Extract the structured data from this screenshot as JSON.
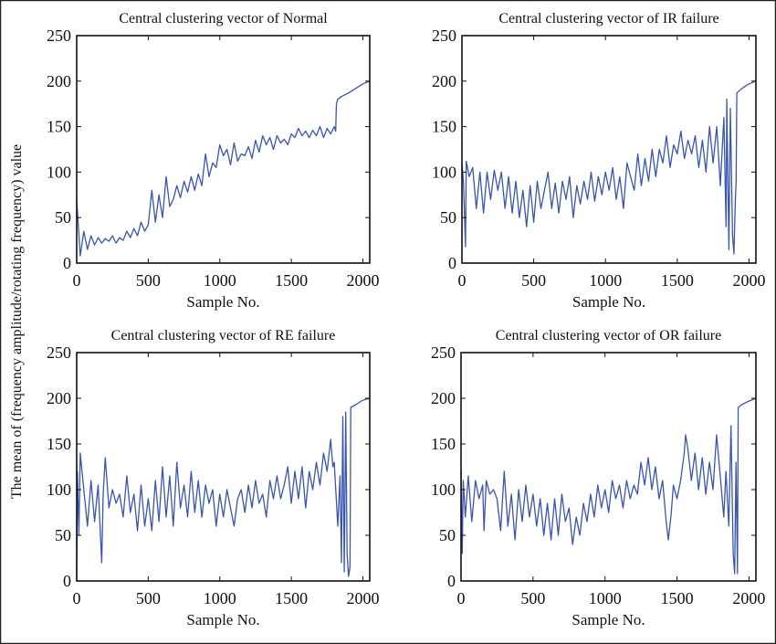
{
  "figure": {
    "ylabel": "The mean of (frequency amplitude/rotating frequency) value",
    "line_color": "#3a55b0"
  },
  "chart_data": [
    {
      "type": "line",
      "title": "Central clustering vector of Normal",
      "xlabel": "Sample No.",
      "xlim": [
        0,
        2048
      ],
      "ylim": [
        0,
        250
      ],
      "xticks": [
        "0",
        "500",
        "1000",
        "1500",
        "2000"
      ],
      "yticks": [
        "0",
        "50",
        "100",
        "150",
        "200",
        "250"
      ],
      "grid": false,
      "x": [
        0,
        25,
        50,
        75,
        100,
        125,
        150,
        175,
        200,
        225,
        250,
        275,
        300,
        325,
        350,
        375,
        400,
        425,
        450,
        475,
        500,
        525,
        550,
        575,
        600,
        625,
        650,
        675,
        700,
        725,
        750,
        775,
        800,
        825,
        850,
        875,
        900,
        925,
        950,
        975,
        1000,
        1025,
        1050,
        1075,
        1100,
        1125,
        1150,
        1175,
        1200,
        1225,
        1250,
        1275,
        1300,
        1325,
        1350,
        1375,
        1400,
        1425,
        1450,
        1475,
        1500,
        1525,
        1550,
        1575,
        1600,
        1625,
        1650,
        1675,
        1700,
        1725,
        1750,
        1775,
        1800,
        1810,
        1815,
        1825,
        1850,
        1900,
        1950,
        2000,
        2048
      ],
      "y": [
        70,
        8,
        35,
        15,
        30,
        20,
        28,
        22,
        27,
        24,
        30,
        22,
        28,
        25,
        35,
        28,
        38,
        30,
        45,
        35,
        42,
        80,
        45,
        75,
        50,
        95,
        62,
        70,
        85,
        72,
        90,
        78,
        95,
        80,
        98,
        85,
        120,
        95,
        110,
        105,
        130,
        118,
        125,
        108,
        132,
        112,
        120,
        118,
        128,
        115,
        135,
        122,
        140,
        130,
        138,
        125,
        140,
        132,
        136,
        130,
        142,
        138,
        148,
        140,
        145,
        138,
        146,
        140,
        150,
        138,
        148,
        142,
        150,
        145,
        175,
        180,
        183,
        187,
        192,
        197,
        200
      ]
    },
    {
      "type": "line",
      "title": "Central clustering vector of IR failure",
      "xlabel": "Sample No.",
      "xlim": [
        0,
        2048
      ],
      "ylim": [
        0,
        250
      ],
      "xticks": [
        "0",
        "500",
        "1000",
        "1500",
        "2000"
      ],
      "yticks": [
        "0",
        "50",
        "100",
        "150",
        "200",
        "250"
      ],
      "grid": false,
      "x": [
        0,
        10,
        25,
        30,
        50,
        75,
        100,
        125,
        150,
        175,
        200,
        225,
        250,
        275,
        300,
        325,
        350,
        375,
        400,
        425,
        450,
        475,
        500,
        525,
        550,
        575,
        600,
        625,
        650,
        675,
        700,
        725,
        750,
        775,
        800,
        825,
        850,
        875,
        900,
        925,
        950,
        975,
        1000,
        1025,
        1050,
        1075,
        1100,
        1125,
        1150,
        1175,
        1200,
        1225,
        1250,
        1275,
        1300,
        1325,
        1350,
        1375,
        1400,
        1425,
        1450,
        1475,
        1500,
        1525,
        1550,
        1575,
        1600,
        1625,
        1650,
        1675,
        1700,
        1725,
        1750,
        1775,
        1800,
        1825,
        1840,
        1845,
        1860,
        1870,
        1885,
        1895,
        1905,
        1910,
        1915,
        1950,
        2000,
        2048
      ],
      "y": [
        110,
        90,
        18,
        112,
        95,
        105,
        60,
        100,
        55,
        100,
        70,
        102,
        80,
        100,
        60,
        95,
        55,
        90,
        50,
        80,
        40,
        85,
        45,
        90,
        60,
        80,
        100,
        60,
        88,
        55,
        90,
        70,
        95,
        50,
        85,
        65,
        90,
        70,
        100,
        68,
        95,
        75,
        100,
        80,
        105,
        70,
        95,
        60,
        110,
        95,
        80,
        120,
        85,
        115,
        90,
        125,
        95,
        125,
        110,
        140,
        105,
        130,
        120,
        145,
        115,
        135,
        120,
        140,
        105,
        135,
        100,
        150,
        110,
        150,
        85,
        160,
        40,
        180,
        15,
        170,
        30,
        10,
        70,
        90,
        187,
        192,
        197,
        200
      ]
    },
    {
      "type": "line",
      "title": "Central clustering vector of RE failure",
      "xlabel": "Sample No.",
      "xlim": [
        0,
        2048
      ],
      "ylim": [
        0,
        250
      ],
      "xticks": [
        "0",
        "500",
        "1000",
        "1500",
        "2000"
      ],
      "yticks": [
        "0",
        "50",
        "100",
        "150",
        "200",
        "250"
      ],
      "grid": false,
      "x": [
        0,
        5,
        15,
        25,
        50,
        75,
        100,
        125,
        150,
        175,
        185,
        200,
        225,
        250,
        275,
        300,
        325,
        350,
        375,
        400,
        425,
        450,
        475,
        500,
        525,
        550,
        575,
        600,
        625,
        650,
        675,
        700,
        725,
        750,
        775,
        800,
        825,
        850,
        875,
        900,
        925,
        950,
        975,
        1000,
        1025,
        1050,
        1075,
        1100,
        1125,
        1150,
        1175,
        1200,
        1225,
        1250,
        1275,
        1300,
        1325,
        1350,
        1375,
        1400,
        1425,
        1450,
        1475,
        1500,
        1525,
        1550,
        1575,
        1600,
        1625,
        1650,
        1675,
        1700,
        1725,
        1750,
        1775,
        1790,
        1800,
        1825,
        1840,
        1850,
        1860,
        1870,
        1880,
        1890,
        1900,
        1910,
        1915,
        1950,
        2000,
        2048
      ],
      "y": [
        0,
        120,
        50,
        140,
        100,
        60,
        110,
        65,
        105,
        20,
        95,
        135,
        80,
        100,
        85,
        95,
        70,
        115,
        75,
        95,
        55,
        105,
        60,
        90,
        55,
        110,
        65,
        125,
        70,
        115,
        60,
        130,
        80,
        105,
        70,
        120,
        75,
        110,
        70,
        105,
        85,
        100,
        60,
        95,
        70,
        100,
        80,
        60,
        90,
        100,
        75,
        105,
        80,
        110,
        85,
        95,
        70,
        110,
        90,
        115,
        90,
        105,
        125,
        85,
        120,
        90,
        125,
        80,
        120,
        100,
        130,
        105,
        140,
        120,
        155,
        125,
        130,
        60,
        115,
        20,
        180,
        10,
        185,
        30,
        5,
        15,
        190,
        193,
        198,
        200
      ]
    },
    {
      "type": "line",
      "title": "Central clustering vector of OR failure",
      "xlabel": "Sample No.",
      "xlim": [
        0,
        2048
      ],
      "ylim": [
        0,
        250
      ],
      "xticks": [
        "0",
        "500",
        "1000",
        "1500",
        "2000"
      ],
      "yticks": [
        "0",
        "50",
        "100",
        "150",
        "200",
        "250"
      ],
      "grid": false,
      "x": [
        0,
        8,
        15,
        30,
        50,
        75,
        100,
        125,
        150,
        160,
        175,
        200,
        225,
        250,
        275,
        300,
        325,
        350,
        375,
        400,
        425,
        450,
        475,
        500,
        525,
        550,
        575,
        600,
        625,
        650,
        675,
        700,
        725,
        750,
        775,
        800,
        825,
        850,
        875,
        900,
        925,
        950,
        975,
        1000,
        1025,
        1050,
        1075,
        1100,
        1125,
        1150,
        1175,
        1200,
        1225,
        1250,
        1275,
        1300,
        1325,
        1350,
        1375,
        1400,
        1425,
        1440,
        1460,
        1475,
        1500,
        1525,
        1550,
        1560,
        1575,
        1600,
        1625,
        1650,
        1675,
        1700,
        1725,
        1750,
        1775,
        1800,
        1825,
        1840,
        1860,
        1875,
        1890,
        1900,
        1910,
        1920,
        1925,
        1950,
        2000,
        2048
      ],
      "y": [
        120,
        30,
        110,
        70,
        115,
        65,
        110,
        90,
        105,
        55,
        110,
        95,
        100,
        90,
        55,
        120,
        60,
        95,
        45,
        100,
        65,
        105,
        70,
        95,
        60,
        90,
        50,
        85,
        45,
        90,
        50,
        95,
        65,
        80,
        40,
        70,
        50,
        85,
        65,
        95,
        70,
        105,
        80,
        100,
        75,
        110,
        90,
        105,
        80,
        110,
        90,
        105,
        95,
        130,
        105,
        135,
        100,
        125,
        90,
        110,
        65,
        45,
        75,
        105,
        90,
        110,
        140,
        160,
        145,
        110,
        140,
        100,
        135,
        95,
        130,
        100,
        160,
        115,
        70,
        120,
        60,
        170,
        30,
        8,
        130,
        8,
        190,
        193,
        197,
        200
      ]
    }
  ]
}
